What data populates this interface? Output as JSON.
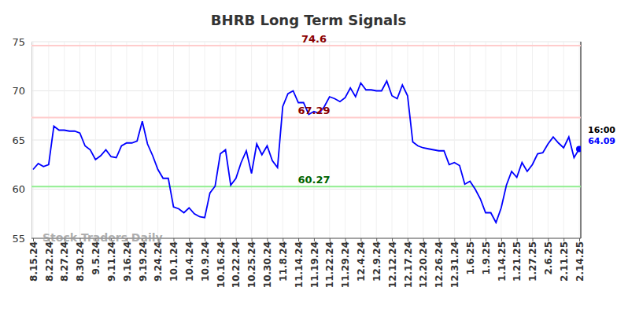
{
  "chart_data": {
    "type": "line",
    "title": "BHRB Long Term Signals",
    "categories": [
      "8.15.24",
      null,
      null,
      "8.22.24",
      null,
      null,
      "8.27.24",
      null,
      null,
      "8.30.24",
      null,
      null,
      "9.5.24",
      null,
      null,
      "9.11.24",
      null,
      null,
      "9.16.24",
      null,
      null,
      "9.19.24",
      null,
      null,
      "9.24.24",
      null,
      null,
      "10.1.24",
      null,
      null,
      "10.4.24",
      null,
      null,
      "10.9.24",
      null,
      null,
      "10.16.24",
      null,
      null,
      "10.22.24",
      null,
      null,
      "10.25.24",
      null,
      null,
      "10.30.24",
      null,
      null,
      "11.8.24",
      null,
      null,
      "11.14.24",
      null,
      null,
      "11.19.24",
      null,
      null,
      "11.22.24",
      null,
      null,
      "11.29.24",
      null,
      null,
      "12.4.24",
      null,
      null,
      "12.9.24",
      null,
      null,
      "12.12.24",
      null,
      null,
      "12.17.24",
      null,
      null,
      "12.20.24",
      null,
      null,
      "12.26.24",
      null,
      null,
      "12.31.24",
      null,
      null,
      "1.6.25",
      null,
      null,
      "1.9.25",
      null,
      null,
      "1.14.25",
      null,
      null,
      "1.21.25",
      null,
      null,
      "1.27.25",
      null,
      null,
      "2.6.25",
      null,
      null,
      "2.11.25",
      null,
      null,
      "2.14.25"
    ],
    "values": [
      62.0,
      62.6,
      62.3,
      62.5,
      66.4,
      66.0,
      66.0,
      65.9,
      65.9,
      65.7,
      64.4,
      64.0,
      63.0,
      63.4,
      64.0,
      63.3,
      63.2,
      64.4,
      64.7,
      64.7,
      64.9,
      66.9,
      64.6,
      63.4,
      62.0,
      61.1,
      61.1,
      58.2,
      58.0,
      57.6,
      58.1,
      57.5,
      57.2,
      57.1,
      59.6,
      60.3,
      63.6,
      64.0,
      60.4,
      61.1,
      62.7,
      63.9,
      61.6,
      64.6,
      63.5,
      64.4,
      62.9,
      62.2,
      68.4,
      69.7,
      70.0,
      68.8,
      68.8,
      67.6,
      67.9,
      67.7,
      68.4,
      69.4,
      69.2,
      68.9,
      69.3,
      70.3,
      69.4,
      70.8,
      70.1,
      70.1,
      70.0,
      70.0,
      71.0,
      69.5,
      69.2,
      70.6,
      69.5,
      64.8,
      64.4,
      64.2,
      64.1,
      64.0,
      63.9,
      63.9,
      62.5,
      62.7,
      62.4,
      60.5,
      60.8,
      60.0,
      59.0,
      57.6,
      57.6,
      56.6,
      58.1,
      60.4,
      61.8,
      61.2,
      62.7,
      61.8,
      62.5,
      63.6,
      63.7,
      64.6,
      65.3,
      64.7,
      64.2,
      65.3,
      63.2,
      64.09
    ],
    "color": "#0000ff",
    "ylim": [
      55,
      75
    ],
    "yticks": [
      55,
      60,
      65,
      70,
      75
    ],
    "grid": true,
    "annotations": [
      {
        "text": "74.6",
        "y": 74.6,
        "color": "#ffcccc",
        "text_color": "#8b0000"
      },
      {
        "text": "67.29",
        "y": 67.29,
        "color": "#ffcccc",
        "text_color": "#8b0000"
      },
      {
        "text": "60.27",
        "y": 60.27,
        "color": "#90ee90",
        "text_color": "#006400"
      },
      {
        "text": "16:00"
      },
      {
        "text": "64.09",
        "y": 64.09
      },
      {
        "text": "Stock Traders Daily"
      }
    ]
  }
}
